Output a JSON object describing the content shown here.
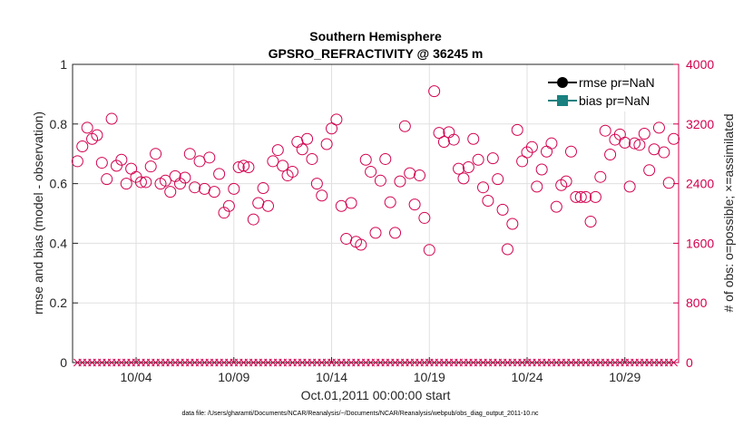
{
  "chart_data": {
    "type": "scatter",
    "title": "Southern Hemisphere",
    "subtitle": "GPSRO_REFRACTIVITY @ 36245 m",
    "xlabel": "Oct.01,2011 00:00:00 start",
    "ylabel": "rmse and bias (model - observation)",
    "ylabel_right": "# of obs: o=possible; ×=assimilated",
    "footnote": "data file: /Users/gharamti/Documents/NCAR/Reanalysis/~/Documents/NCAR/Reanalysis/webpub/obs_diag_output_2011-10.nc",
    "xlim": [
      0.75,
      31.75
    ],
    "ylim": [
      0,
      1
    ],
    "ylim_right": [
      0,
      4000
    ],
    "grid": true,
    "legend_position": "top-right",
    "left_ticks": [
      "0",
      "0.2",
      "0.4",
      "0.6",
      "0.8",
      "1"
    ],
    "left_tick_values": [
      0,
      0.2,
      0.4,
      0.6,
      0.8,
      1
    ],
    "right_ticks": [
      "0",
      "800",
      "1600",
      "2400",
      "3200",
      "4000"
    ],
    "right_tick_values": [
      0,
      800,
      1600,
      2400,
      3200,
      4000
    ],
    "x_ticks": [
      "10/04",
      "10/09",
      "10/14",
      "10/19",
      "10/24",
      "10/29"
    ],
    "x_tick_values": [
      4,
      9,
      14,
      19,
      24,
      29
    ],
    "colors": {
      "obs": "#d4004f",
      "rmse": "#000000",
      "bias": "#1a8080",
      "grid": "#e0e0e0"
    },
    "series": [
      {
        "name": "rmse pr=NaN",
        "values": [],
        "marker": "circle"
      },
      {
        "name": "bias pr=NaN",
        "values": [],
        "marker": "square"
      },
      {
        "name": "obs possible",
        "axis": "right",
        "marker": "o",
        "x": [
          1.0,
          1.25,
          1.5,
          1.75,
          2.0,
          2.25,
          2.5,
          2.75,
          3.0,
          3.25,
          3.5,
          3.75,
          4.0,
          4.25,
          4.5,
          4.75,
          5.0,
          5.25,
          5.5,
          5.75,
          6.0,
          6.25,
          6.5,
          6.75,
          7.0,
          7.25,
          7.5,
          7.75,
          8.0,
          8.25,
          8.5,
          8.75,
          9.0,
          9.25,
          9.5,
          9.75,
          10.0,
          10.25,
          10.5,
          10.75,
          11.0,
          11.25,
          11.5,
          11.75,
          12.0,
          12.25,
          12.5,
          12.75,
          13.0,
          13.25,
          13.5,
          13.75,
          14.0,
          14.25,
          14.5,
          14.75,
          15.0,
          15.25,
          15.5,
          15.75,
          16.0,
          16.25,
          16.5,
          16.75,
          17.0,
          17.25,
          17.5,
          17.75,
          18.0,
          18.25,
          18.5,
          18.75,
          19.0,
          19.25,
          19.5,
          19.75,
          20.0,
          20.25,
          20.5,
          20.75,
          21.0,
          21.25,
          21.5,
          21.75,
          22.0,
          22.25,
          22.5,
          22.75,
          23.0,
          23.25,
          23.5,
          23.75,
          24.0,
          24.25,
          24.5,
          24.75,
          25.0,
          25.25,
          25.5,
          25.75,
          26.0,
          26.25,
          26.5,
          26.75,
          27.0,
          27.25,
          27.5,
          27.75,
          28.0,
          28.25,
          28.5,
          28.75,
          29.0,
          29.25,
          29.5,
          29.75,
          30.0,
          30.25,
          30.5,
          30.75,
          31.0,
          31.25,
          31.5
        ],
        "values": [
          2700,
          2900,
          3150,
          3000,
          3050,
          2680,
          2460,
          3270,
          2640,
          2720,
          2400,
          2600,
          2490,
          2420,
          2420,
          2630,
          2800,
          2400,
          2440,
          2290,
          2500,
          2400,
          2480,
          2800,
          2350,
          2700,
          2330,
          2750,
          2290,
          2530,
          2010,
          2100,
          2330,
          2620,
          2640,
          2620,
          1920,
          2140,
          2340,
          2100,
          2700,
          2850,
          2640,
          2510,
          2560,
          2960,
          2860,
          3000,
          2730,
          2400,
          2240,
          2930,
          3140,
          3260,
          2100,
          1660,
          2140,
          1620,
          1580,
          2720,
          2560,
          1740,
          2440,
          2730,
          2150,
          1740,
          2430,
          3170,
          2540,
          2120,
          2510,
          1940,
          1510,
          3640,
          3080,
          2960,
          3090,
          2990,
          2600,
          2470,
          2620,
          3000,
          2720,
          2350,
          2170,
          2740,
          2460,
          2050,
          1520,
          1860,
          3120,
          2700,
          2820,
          2890,
          2360,
          2590,
          2830,
          2940,
          2090,
          2380,
          2430,
          2830,
          2220,
          2220,
          2220,
          1890,
          2220,
          2490,
          3110,
          2790,
          2990,
          3060,
          2950,
          2360,
          2940,
          2920,
          3070,
          2580,
          2860,
          3150,
          2820,
          2410,
          3000
        ],
        "color": "#d4004f"
      },
      {
        "name": "obs assimilated",
        "axis": "right",
        "marker": "x",
        "constant": 0,
        "color": "#d4004f"
      }
    ]
  }
}
